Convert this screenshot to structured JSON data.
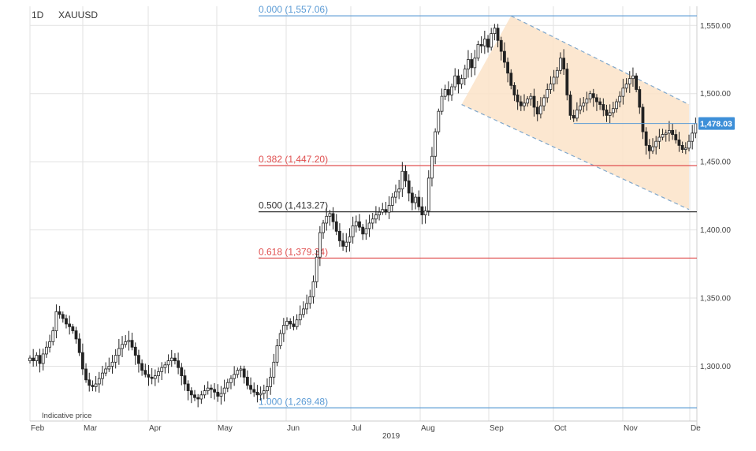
{
  "chart_data": {
    "type": "candlestick",
    "interval": "1D",
    "symbol": "XAUUSD",
    "year_label": "2019",
    "note": "Indicative price",
    "ylim": [
      1265,
      1563
    ],
    "y_ticks": [
      "1,550.00",
      "1,500.00",
      "1,450.00",
      "1,400.00",
      "1,350.00",
      "1,300.00"
    ],
    "y_tick_values": [
      1550,
      1500,
      1450,
      1400,
      1350,
      1300
    ],
    "x_ticks": [
      "Feb",
      "Mar",
      "Apr",
      "May",
      "Jun",
      "Jul",
      "Aug",
      "Sep",
      "Oct",
      "Nov",
      "De"
    ],
    "last_price": 1478.03,
    "last_price_label": "1,478.03",
    "colors": {
      "fib_blue": "#5b9bd5",
      "fib_red": "#e05050",
      "fib_black": "#333333",
      "channel_fill": "#fbe3c8",
      "channel_line": "#7fa7cc",
      "candle": "#222222",
      "last_price_bg": "#3d8fd8",
      "grid": "#e2e2e2"
    },
    "fib_levels": [
      {
        "label": "0.000 (1,557.06)",
        "value": 1557.06,
        "kind": "blue"
      },
      {
        "label": "0.382 (1,447.20)",
        "value": 1447.2,
        "kind": "red"
      },
      {
        "label": "0.500 (1,413.27)",
        "value": 1413.27,
        "kind": "black"
      },
      {
        "label": "0.618 (1,379.34)",
        "value": 1379.34,
        "kind": "red"
      },
      {
        "label": "1.000 (1,269.48)",
        "value": 1269.48,
        "kind": "blue"
      }
    ],
    "channel": {
      "upper": [
        [
          146,
          1557
        ],
        [
          200,
          1492
        ]
      ],
      "lower": [
        [
          131,
          1492
        ],
        [
          200,
          1415
        ]
      ]
    },
    "close_series": [
      1306,
      1304,
      1308,
      1302,
      1309,
      1314,
      1318,
      1326,
      1340,
      1338,
      1335,
      1331,
      1329,
      1326,
      1320,
      1310,
      1298,
      1290,
      1286,
      1285,
      1287,
      1291,
      1295,
      1298,
      1300,
      1303,
      1308,
      1313,
      1316,
      1318,
      1319,
      1314,
      1308,
      1302,
      1297,
      1294,
      1292,
      1291,
      1293,
      1296,
      1299,
      1301,
      1304,
      1306,
      1304,
      1299,
      1293,
      1287,
      1282,
      1279,
      1277,
      1276,
      1279,
      1282,
      1284,
      1283,
      1281,
      1278,
      1280,
      1284,
      1288,
      1291,
      1294,
      1297,
      1298,
      1292,
      1286,
      1283,
      1281,
      1279,
      1280,
      1282,
      1285,
      1292,
      1303,
      1315,
      1324,
      1330,
      1333,
      1331,
      1329,
      1334,
      1338,
      1342,
      1346,
      1351,
      1362,
      1380,
      1398,
      1405,
      1410,
      1412,
      1406,
      1399,
      1392,
      1388,
      1391,
      1395,
      1403,
      1406,
      1402,
      1397,
      1401,
      1405,
      1408,
      1411,
      1413,
      1415,
      1413,
      1418,
      1424,
      1428,
      1430,
      1443,
      1436,
      1427,
      1420,
      1424,
      1417,
      1411,
      1414,
      1438,
      1454,
      1472,
      1487,
      1498,
      1503,
      1499,
      1505,
      1513,
      1507,
      1511,
      1518,
      1525,
      1519,
      1526,
      1536,
      1535,
      1540,
      1534,
      1544,
      1548,
      1539,
      1531,
      1523,
      1515,
      1506,
      1499,
      1494,
      1491,
      1493,
      1496,
      1498,
      1490,
      1485,
      1491,
      1497,
      1503,
      1507,
      1512,
      1517,
      1526,
      1518,
      1499,
      1484,
      1482,
      1488,
      1491,
      1493,
      1496,
      1500,
      1497,
      1494,
      1492,
      1488,
      1484,
      1486,
      1489,
      1494,
      1498,
      1504,
      1507,
      1511,
      1513,
      1503,
      1490,
      1472,
      1462,
      1458,
      1461,
      1465,
      1468,
      1470,
      1471,
      1473,
      1470,
      1466,
      1462,
      1459,
      1460,
      1465,
      1471,
      1478
    ]
  }
}
